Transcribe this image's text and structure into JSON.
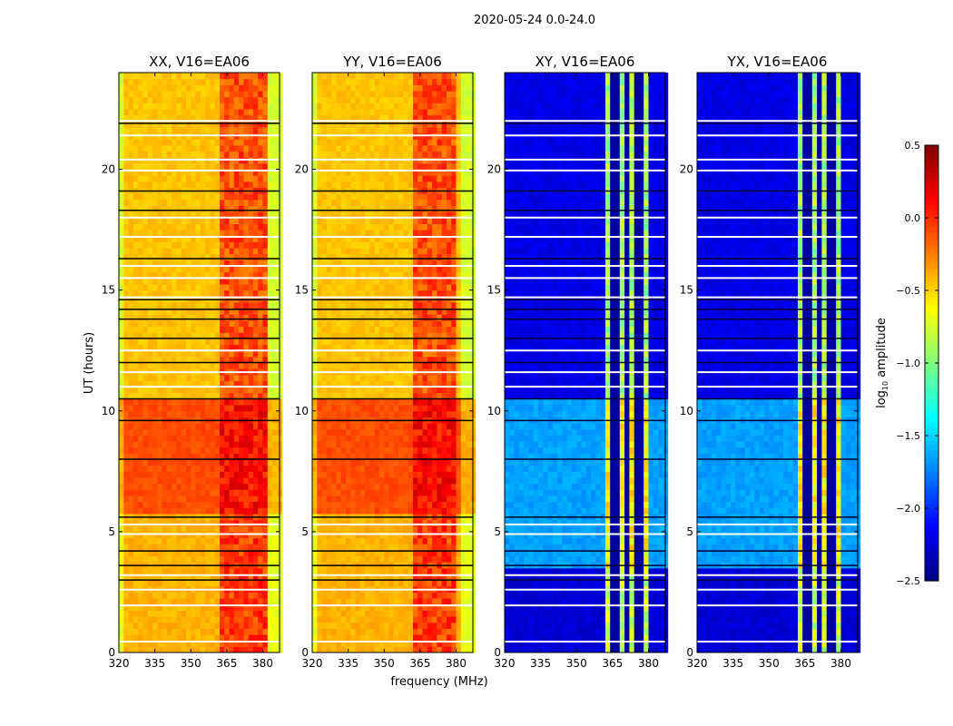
{
  "figure_title": "2020-05-24 0.0-24.0",
  "chart_data": {
    "type": "heatmap",
    "title": "2020-05-24 0.0-24.0",
    "xlabel": "frequency (MHz)",
    "ylabel": "UT (hours)",
    "xlim": [
      320,
      387
    ],
    "ylim": [
      0,
      24
    ],
    "xticks": [
      "320",
      "335",
      "350",
      "365",
      "380"
    ],
    "xtick_values": [
      320,
      335,
      350,
      365,
      380
    ],
    "yticks": [
      "0",
      "5",
      "10",
      "15",
      "20"
    ],
    "ytick_values": [
      0,
      5,
      10,
      15,
      20
    ],
    "colorbar": {
      "label": "log10 amplitude",
      "label_base": "log",
      "label_sub": "10",
      "label_rest": " amplitude",
      "colormap": "jet",
      "range": [
        -2.5,
        0.5
      ],
      "ticks": [
        "0.5",
        "0.0",
        "−0.5",
        "−1.0",
        "−1.5",
        "−2.0",
        "−2.5"
      ],
      "tick_values": [
        0.5,
        0.0,
        -0.5,
        -1.0,
        -1.5,
        -2.0,
        -2.5
      ]
    },
    "flagged_rows_white_hours": [
      0.45,
      1.95,
      2.6,
      3.2,
      4.9,
      5.3,
      11.0,
      11.6,
      12.5,
      14.7,
      15.5,
      16.0,
      17.2,
      18.0,
      19.95,
      20.4,
      21.4,
      22.0
    ],
    "flagged_rows_black_hours": [
      3.0,
      3.6,
      4.2,
      5.6,
      8.0,
      9.6,
      10.5,
      12.0,
      13.0,
      13.8,
      14.2,
      14.6,
      16.3,
      18.3,
      19.1,
      21.9
    ],
    "panels": [
      {
        "title": "XX, V16=EA06",
        "band_mhz": [
          363,
          381
        ],
        "notch_mhz": [],
        "segments": [
          {
            "hours": [
              0,
              5.6
            ],
            "low": -0.4,
            "band": -0.05
          },
          {
            "hours": [
              5.6,
              10.5
            ],
            "low": -0.1,
            "band": 0.1
          },
          {
            "hours": [
              10.5,
              24
            ],
            "low": -0.45,
            "band": -0.1
          }
        ]
      },
      {
        "title": "YY, V16=EA06",
        "band_mhz": [
          362,
          380
        ],
        "notch_mhz": [],
        "segments": [
          {
            "hours": [
              0,
              5.6
            ],
            "low": -0.4,
            "band": -0.05
          },
          {
            "hours": [
              5.6,
              10.5
            ],
            "low": -0.1,
            "band": 0.1
          },
          {
            "hours": [
              10.5,
              24
            ],
            "low": -0.45,
            "band": -0.1
          }
        ]
      },
      {
        "title": "XY, V16=EA06",
        "band_mhz": [
          363,
          380
        ],
        "notch_mhz": [
          366,
          371,
          376
        ],
        "segments": [
          {
            "hours": [
              0,
              3.5
            ],
            "low": -2.25,
            "band": -0.8
          },
          {
            "hours": [
              3.5,
              10.3
            ],
            "low": -1.65,
            "band": -0.6
          },
          {
            "hours": [
              10.3,
              24
            ],
            "low": -2.2,
            "band": -0.9
          }
        ]
      },
      {
        "title": "YX, V16=EA06",
        "band_mhz": [
          363,
          380
        ],
        "notch_mhz": [
          366,
          371,
          376
        ],
        "segments": [
          {
            "hours": [
              0,
              3.5
            ],
            "low": -2.25,
            "band": -0.8
          },
          {
            "hours": [
              3.5,
              10.3
            ],
            "low": -1.65,
            "band": -0.6
          },
          {
            "hours": [
              10.3,
              24
            ],
            "low": -2.2,
            "band": -0.9
          }
        ]
      }
    ]
  }
}
